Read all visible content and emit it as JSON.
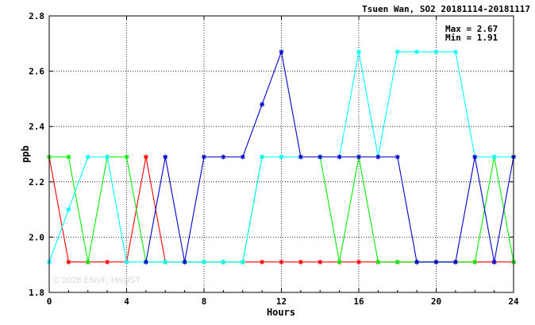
{
  "chart_data": {
    "type": "line",
    "title": "Tsuen Wan, SO2 20181114-20181117",
    "xlabel": "Hours",
    "ylabel": "ppb",
    "xlim": [
      0,
      24
    ],
    "ylim": [
      1.8,
      2.8
    ],
    "x_ticks": [
      0,
      4,
      8,
      12,
      16,
      20,
      24
    ],
    "y_ticks": [
      1.8,
      2.0,
      2.2,
      2.4,
      2.6,
      2.8
    ],
    "y_tick_labels": [
      "1.8",
      "2.0",
      "2.2",
      "2.4",
      "2.6",
      "2.8"
    ],
    "grid": true,
    "annotations": [
      "Max = 2.67",
      "Min = 1.91"
    ],
    "watermark": "© 2026  ENVF, HKUST",
    "x": [
      0,
      1,
      2,
      3,
      4,
      5,
      6,
      7,
      8,
      9,
      10,
      11,
      12,
      13,
      14,
      15,
      16,
      17,
      18,
      19,
      20,
      21,
      22,
      23,
      24
    ],
    "series": [
      {
        "color": "#ff0000",
        "values": [
          2.29,
          1.91,
          1.91,
          1.91,
          1.91,
          2.29,
          1.91,
          1.91,
          1.91,
          1.91,
          1.91,
          1.91,
          1.91,
          1.91,
          1.91,
          1.91,
          1.91,
          1.91,
          1.91,
          1.91,
          1.91,
          1.91,
          1.91,
          1.91,
          1.91
        ]
      },
      {
        "color": "#00ee00",
        "values": [
          2.29,
          2.29,
          1.91,
          2.29,
          2.29,
          1.91,
          1.91,
          1.91,
          1.91,
          1.91,
          1.91,
          2.29,
          2.29,
          2.29,
          2.29,
          1.91,
          2.29,
          1.91,
          1.91,
          1.91,
          1.91,
          1.91,
          1.91,
          2.29,
          1.91
        ]
      },
      {
        "color": "#00ffff",
        "values": [
          1.91,
          2.1,
          2.29,
          2.29,
          1.91,
          1.91,
          1.91,
          1.91,
          1.91,
          1.91,
          1.91,
          2.29,
          2.29,
          2.29,
          2.29,
          2.29,
          2.67,
          2.29,
          2.67,
          2.67,
          2.67,
          2.67,
          2.29,
          2.29,
          2.29
        ]
      },
      {
        "color": "#0000cc",
        "values": [
          null,
          null,
          null,
          null,
          null,
          1.91,
          2.29,
          1.91,
          2.29,
          2.29,
          2.29,
          2.48,
          2.67,
          2.29,
          2.29,
          2.29,
          2.29,
          2.29,
          2.29,
          1.91,
          1.91,
          1.91,
          2.29,
          1.91,
          2.29
        ]
      }
    ]
  }
}
